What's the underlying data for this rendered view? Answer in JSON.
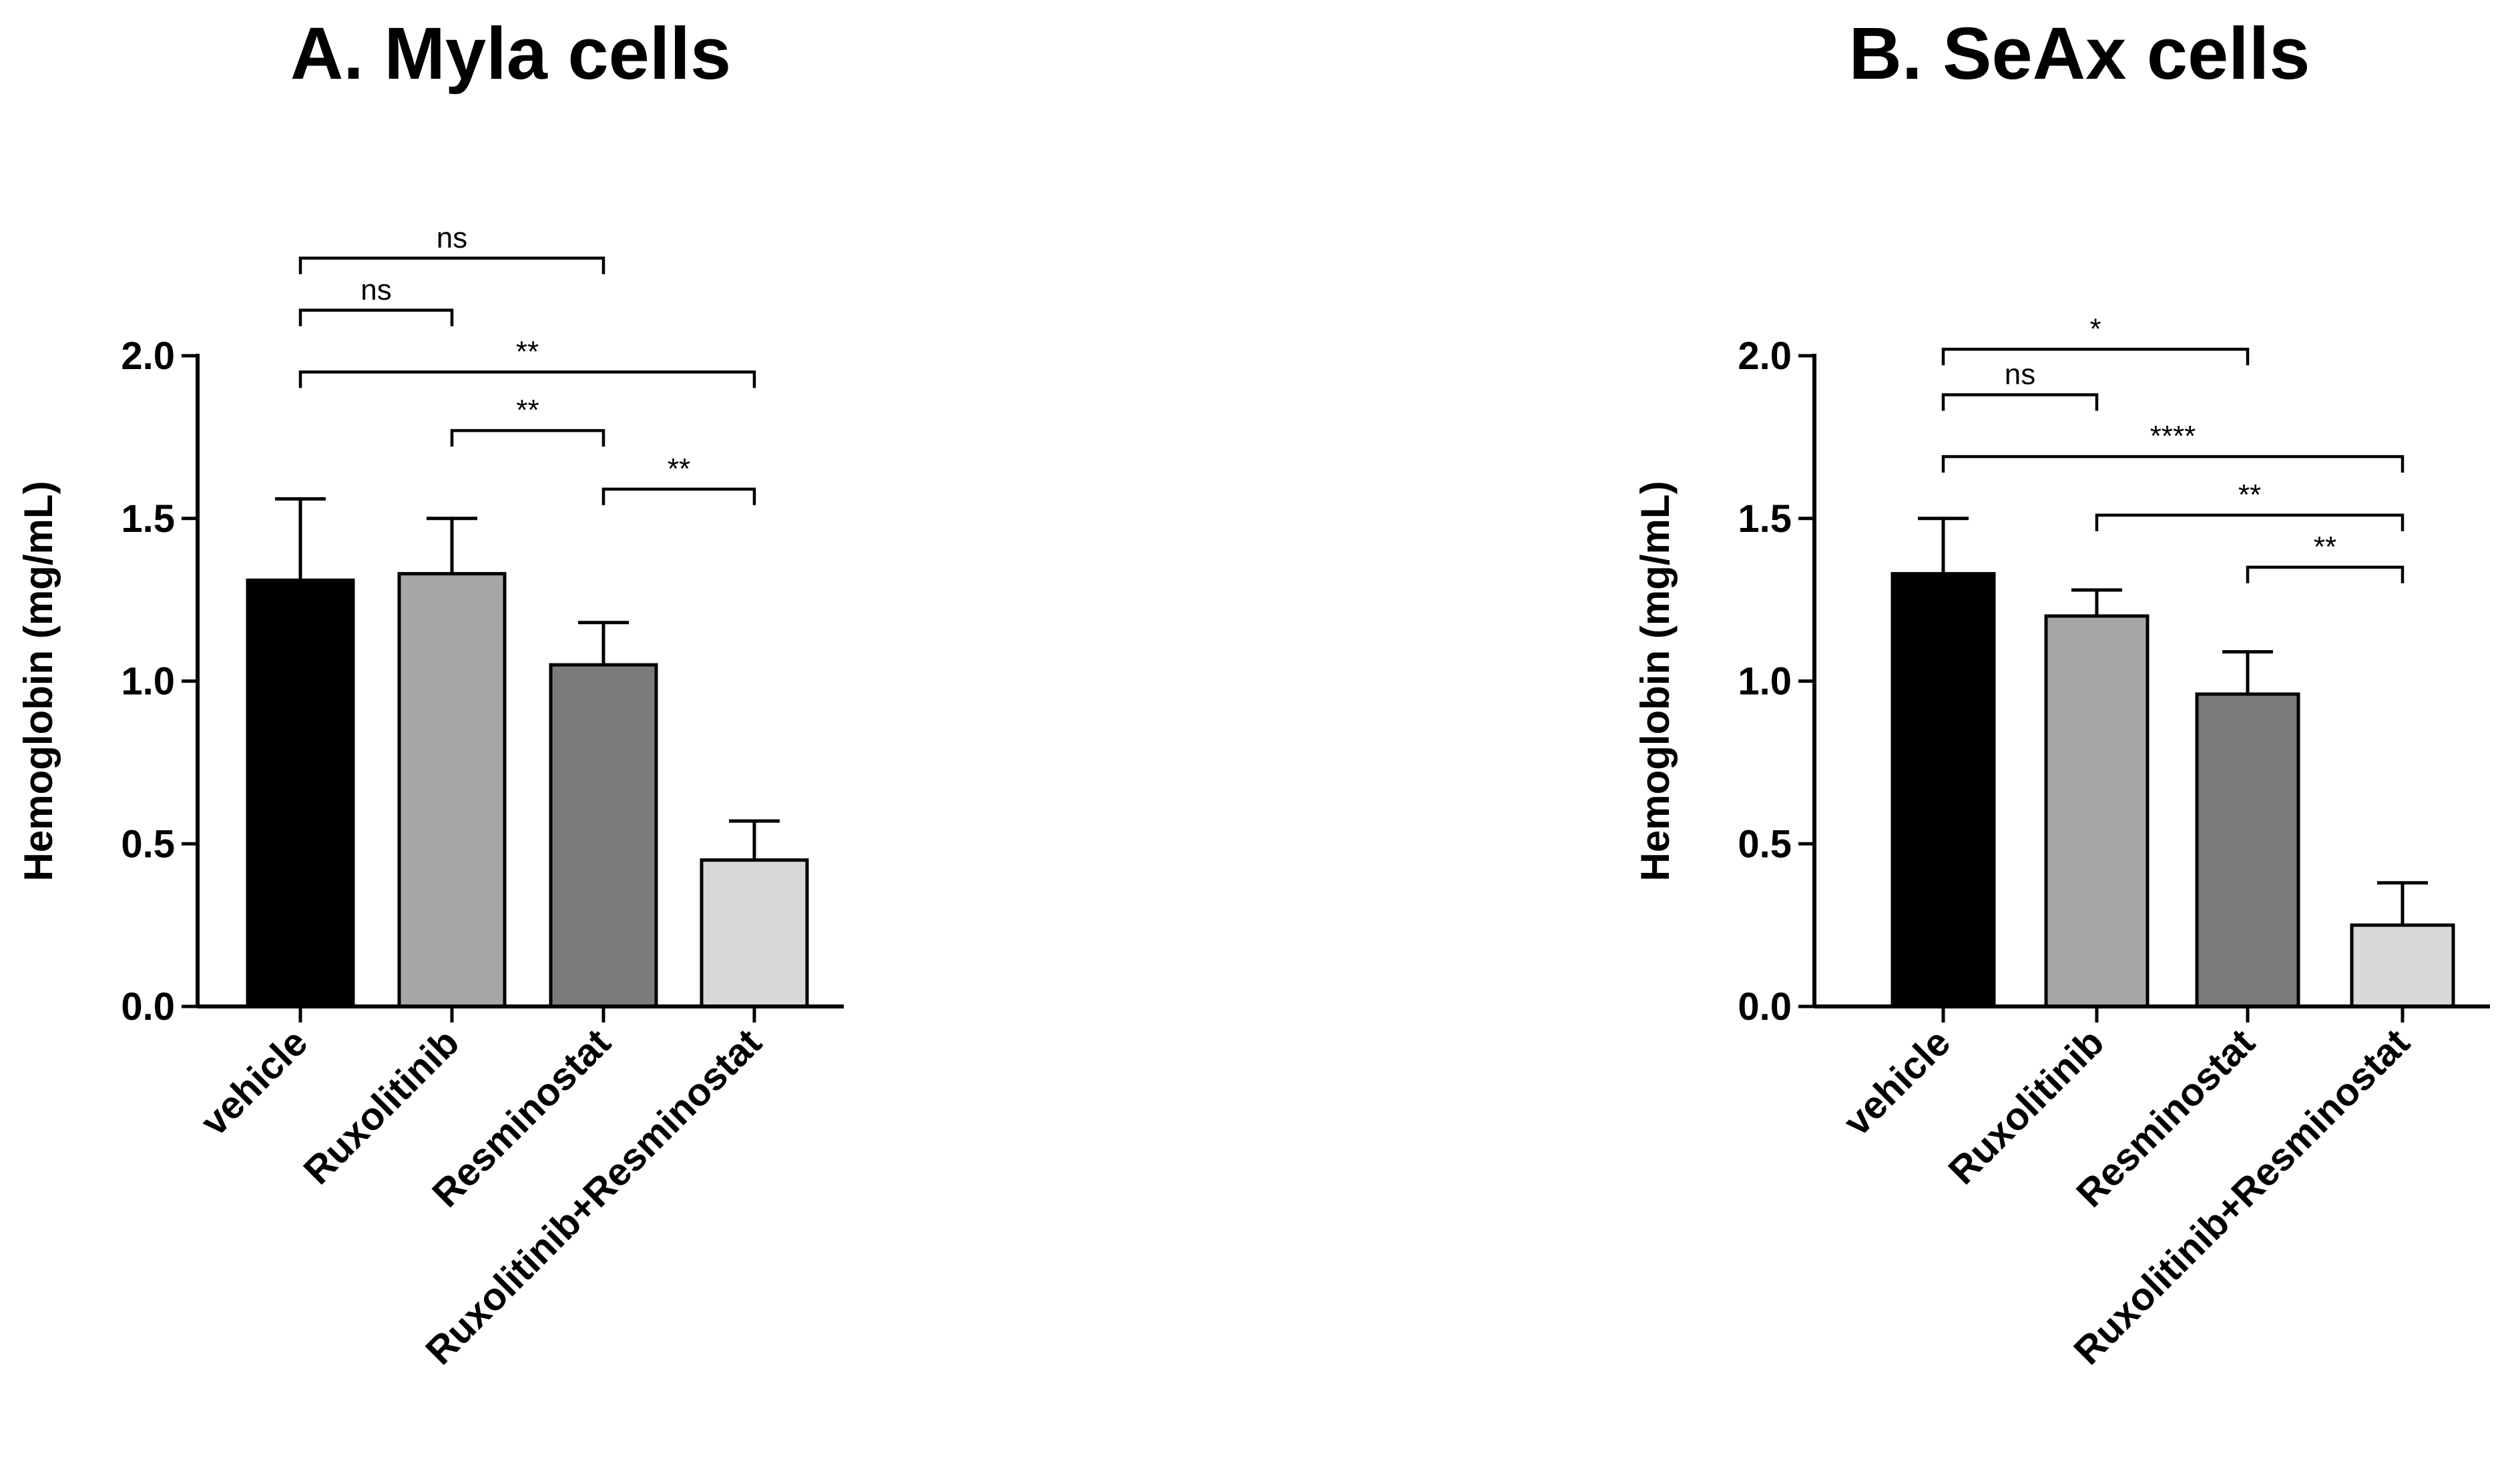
{
  "chart_data": [
    {
      "type": "bar",
      "title": "A. Myla cells",
      "ylabel": "Hemoglobin (mg/mL)",
      "xlabel": "",
      "ylim": [
        0,
        2.0
      ],
      "yticks": [
        0.0,
        0.5,
        1.0,
        1.5,
        2.0
      ],
      "ytick_labels": [
        "0.0",
        "0.5",
        "1.0",
        "1.5",
        "2.0"
      ],
      "categories": [
        "vehicle",
        "Ruxolitinib",
        "Resminostat",
        "Ruxolitinib+Resminostat"
      ],
      "values": [
        1.31,
        1.33,
        1.05,
        0.45
      ],
      "errors": [
        0.25,
        0.17,
        0.13,
        0.12
      ],
      "colors": [
        "#000000",
        "#a6a6a8",
        "#7b7b7b",
        "#d8d8d8"
      ],
      "comparisons": [
        {
          "from": 0,
          "to": 2,
          "label": "ns",
          "level": 2.3
        },
        {
          "from": 0,
          "to": 1,
          "label": "ns",
          "level": 2.14
        },
        {
          "from": 0,
          "to": 3,
          "label": "**",
          "level": 1.95
        },
        {
          "from": 1,
          "to": 2,
          "label": "**",
          "level": 1.77
        },
        {
          "from": 2,
          "to": 3,
          "label": "**",
          "level": 1.59
        }
      ]
    },
    {
      "type": "bar",
      "title": "B. SeAx cells",
      "ylabel": "Hemoglobin (mg/mL)",
      "xlabel": "",
      "ylim": [
        0,
        2.0
      ],
      "yticks": [
        0.0,
        0.5,
        1.0,
        1.5,
        2.0
      ],
      "ytick_labels": [
        "0.0",
        "0.5",
        "1.0",
        "1.5",
        "2.0"
      ],
      "categories": [
        "vehicle",
        "Ruxolitinib",
        "Resminostat",
        "Ruxolitinib+Resminostat"
      ],
      "values": [
        1.33,
        1.2,
        0.96,
        0.25
      ],
      "errors": [
        0.17,
        0.08,
        0.13,
        0.13
      ],
      "colors": [
        "#000000",
        "#a6a6a8",
        "#7b7b7b",
        "#d8d8d8"
      ],
      "comparisons": [
        {
          "from": 0,
          "to": 2,
          "label": "*",
          "level": 2.02
        },
        {
          "from": 0,
          "to": 1,
          "label": "ns",
          "level": 1.88
        },
        {
          "from": 0,
          "to": 3,
          "label": "****",
          "level": 1.69
        },
        {
          "from": 1,
          "to": 3,
          "label": "**",
          "level": 1.51
        },
        {
          "from": 2,
          "to": 3,
          "label": "**",
          "level": 1.35
        }
      ]
    }
  ]
}
